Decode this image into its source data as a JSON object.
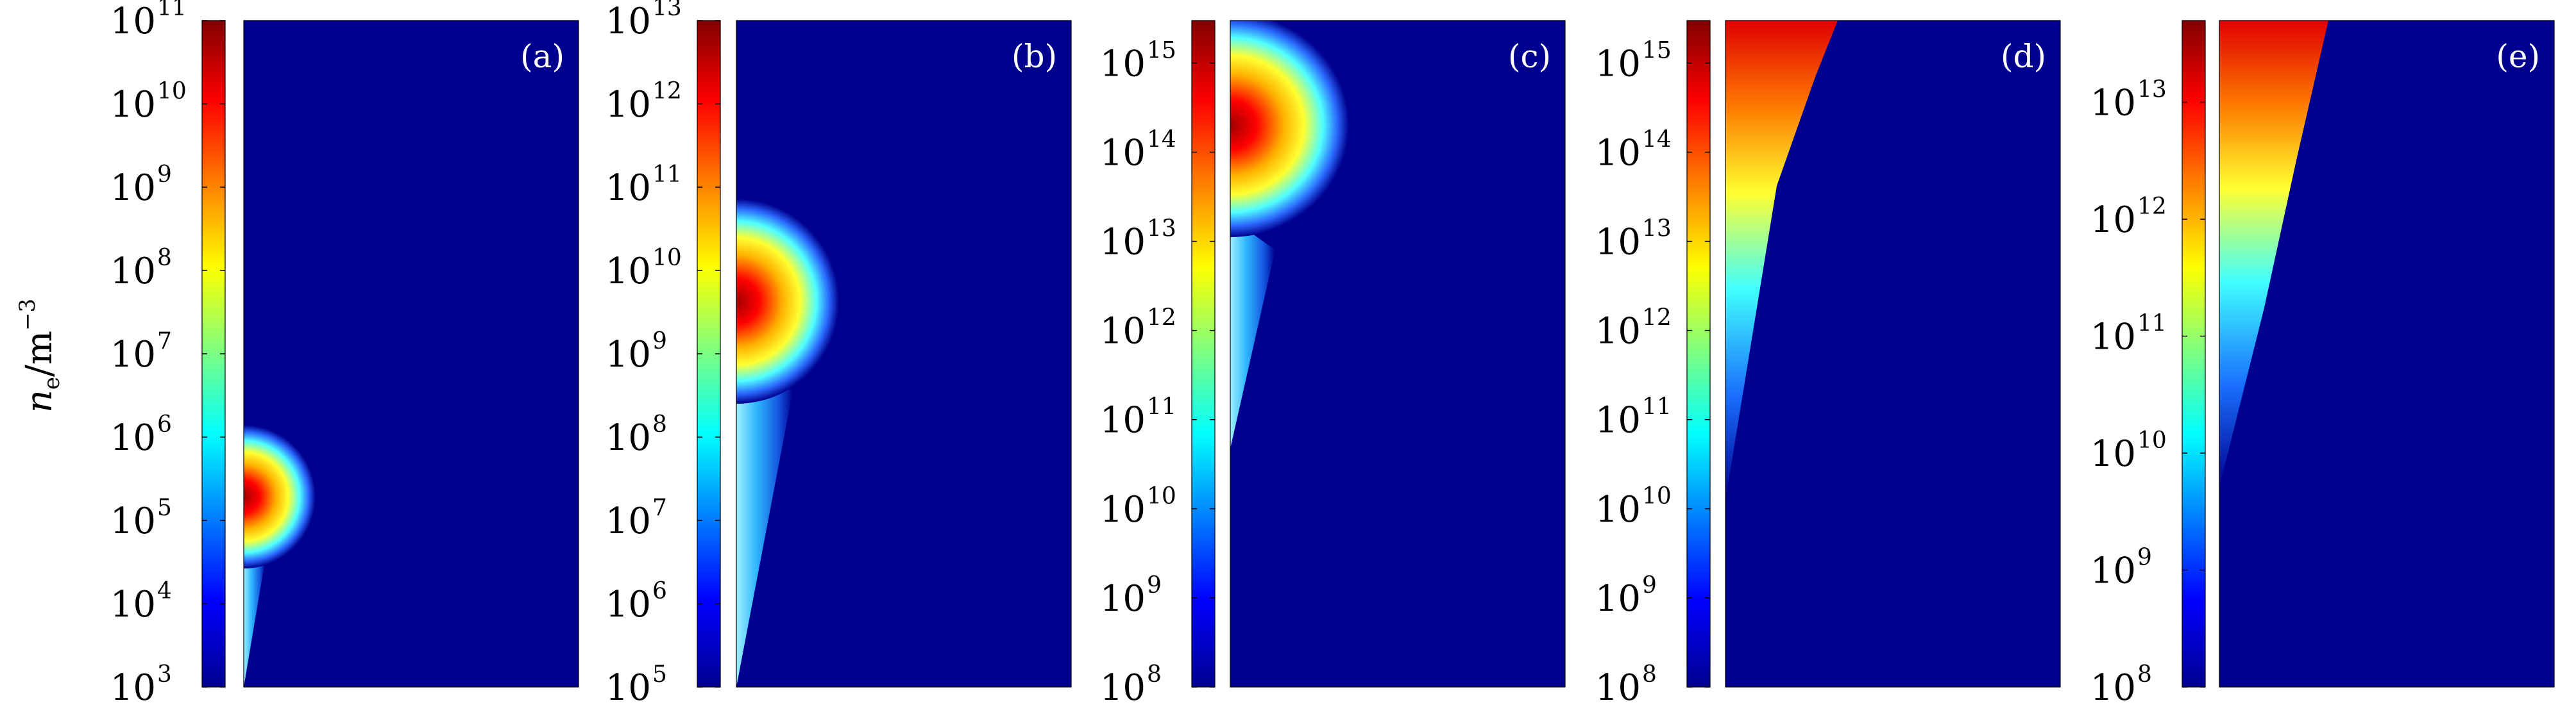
{
  "ylabel": {
    "symbol": "n",
    "subscript": "e",
    "unit": "/m",
    "unit_exponent": "−3"
  },
  "colormap": "jet",
  "background_color": "#00008f",
  "chart_data": [
    {
      "type": "heatmap",
      "panel_label": "(a)",
      "colorbar_scale": "log",
      "colorbar_range": [
        1000.0,
        100000000000.0
      ],
      "colorbar_ticks": [
        {
          "base": "10",
          "exp": "3",
          "value": 1000.0
        },
        {
          "base": "10",
          "exp": "4",
          "value": 10000.0
        },
        {
          "base": "10",
          "exp": "5",
          "value": 100000.0
        },
        {
          "base": "10",
          "exp": "6",
          "value": 1000000.0
        },
        {
          "base": "10",
          "exp": "7",
          "value": 10000000.0
        },
        {
          "base": "10",
          "exp": "8",
          "value": 100000000.0
        },
        {
          "base": "10",
          "exp": "9",
          "value": 1000000000.0
        },
        {
          "base": "10",
          "exp": "10",
          "value": 10000000000.0
        },
        {
          "base": "10",
          "exp": "11",
          "value": 100000000000.0
        }
      ]
    },
    {
      "type": "heatmap",
      "panel_label": "(b)",
      "colorbar_scale": "log",
      "colorbar_range": [
        100000.0,
        10000000000000.0
      ],
      "colorbar_ticks": [
        {
          "base": "10",
          "exp": "5",
          "value": 100000.0
        },
        {
          "base": "10",
          "exp": "6",
          "value": 1000000.0
        },
        {
          "base": "10",
          "exp": "7",
          "value": 10000000.0
        },
        {
          "base": "10",
          "exp": "8",
          "value": 100000000.0
        },
        {
          "base": "10",
          "exp": "9",
          "value": 1000000000.0
        },
        {
          "base": "10",
          "exp": "10",
          "value": 10000000000.0
        },
        {
          "base": "10",
          "exp": "11",
          "value": 100000000000.0
        },
        {
          "base": "10",
          "exp": "12",
          "value": 1000000000000.0
        },
        {
          "base": "10",
          "exp": "13",
          "value": 10000000000000.0
        }
      ]
    },
    {
      "type": "heatmap",
      "panel_label": "(c)",
      "colorbar_scale": "log",
      "colorbar_range": [
        100000000.0,
        3000000000000000.0
      ],
      "colorbar_ticks": [
        {
          "base": "10",
          "exp": "8",
          "value": 100000000.0
        },
        {
          "base": "10",
          "exp": "9",
          "value": 1000000000.0
        },
        {
          "base": "10",
          "exp": "10",
          "value": 10000000000.0
        },
        {
          "base": "10",
          "exp": "11",
          "value": 100000000000.0
        },
        {
          "base": "10",
          "exp": "12",
          "value": 1000000000000.0
        },
        {
          "base": "10",
          "exp": "13",
          "value": 10000000000000.0
        },
        {
          "base": "10",
          "exp": "14",
          "value": 100000000000000.0
        },
        {
          "base": "10",
          "exp": "15",
          "value": 1000000000000000.0
        }
      ]
    },
    {
      "type": "heatmap",
      "panel_label": "(d)",
      "colorbar_scale": "log",
      "colorbar_range": [
        100000000.0,
        3000000000000000.0
      ],
      "colorbar_ticks": [
        {
          "base": "10",
          "exp": "8",
          "value": 100000000.0
        },
        {
          "base": "10",
          "exp": "9",
          "value": 1000000000.0
        },
        {
          "base": "10",
          "exp": "10",
          "value": 10000000000.0
        },
        {
          "base": "10",
          "exp": "11",
          "value": 100000000000.0
        },
        {
          "base": "10",
          "exp": "12",
          "value": 1000000000000.0
        },
        {
          "base": "10",
          "exp": "13",
          "value": 10000000000000.0
        },
        {
          "base": "10",
          "exp": "14",
          "value": 100000000000000.0
        },
        {
          "base": "10",
          "exp": "15",
          "value": 1000000000000000.0
        }
      ]
    },
    {
      "type": "heatmap",
      "panel_label": "(e)",
      "colorbar_scale": "log",
      "colorbar_range": [
        100000000.0,
        50000000000000.0
      ],
      "colorbar_ticks": [
        {
          "base": "10",
          "exp": "8",
          "value": 100000000.0
        },
        {
          "base": "10",
          "exp": "9",
          "value": 1000000000.0
        },
        {
          "base": "10",
          "exp": "10",
          "value": 10000000000.0
        },
        {
          "base": "10",
          "exp": "11",
          "value": 100000000000.0
        },
        {
          "base": "10",
          "exp": "12",
          "value": 1000000000000.0
        },
        {
          "base": "10",
          "exp": "13",
          "value": 10000000000000.0
        }
      ]
    }
  ]
}
